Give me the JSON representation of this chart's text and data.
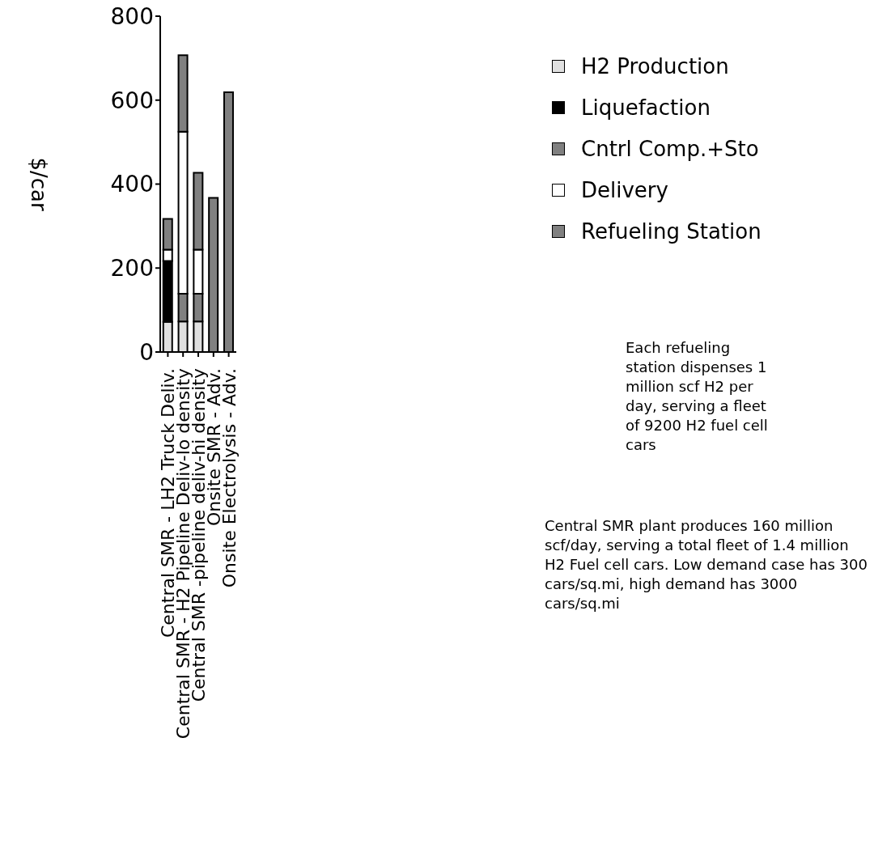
{
  "chart_data": {
    "type": "bar",
    "stacked": true,
    "ylabel": "$/car",
    "categories": [
      "Central SMR - LH2 Truck Deliv.",
      "Central SMR - H2 Pipeline Deliv-lo density",
      "Central SMR -pipeline deliv-hi density",
      "Onsite SMR - Adv.",
      "Onsite Electrolysis - Adv."
    ],
    "series": [
      {
        "name": "H2 Production",
        "color": "#e0e0e0",
        "values": [
          72,
          73,
          73,
          null,
          null
        ]
      },
      {
        "name": "Liquefaction",
        "color": "#000000",
        "values": [
          145,
          null,
          null,
          null,
          null
        ]
      },
      {
        "name": "Cntrl Comp.+Sto",
        "color": "#808080",
        "values": [
          null,
          66,
          66,
          null,
          null
        ]
      },
      {
        "name": "Delivery",
        "color": "#ffffff",
        "values": [
          27,
          386,
          105,
          null,
          null
        ]
      },
      {
        "name": "Refueling Station",
        "color": "#808080",
        "values": [
          73,
          182,
          183,
          367,
          619
        ]
      }
    ],
    "ylim": [
      0,
      800
    ],
    "yticks": [
      0,
      200,
      400,
      600,
      800
    ],
    "legend": "right",
    "annotations": [
      "Each refueling station dispenses 1 million scf H2 per day,  serving a fleet of 9200 H2 fuel cell cars",
      "Central SMR plant produces 160 million scf/day, serving a total fleet of 1.4 million H2 Fuel cell cars. Low demand case has 300 cars/sq.mi, high demand has 3000 cars/sq.mi"
    ]
  }
}
